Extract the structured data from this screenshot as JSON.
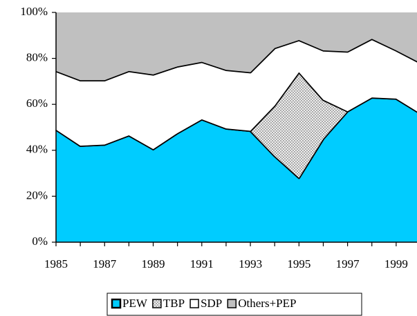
{
  "chart_data": {
    "type": "stacked-area",
    "x": [
      1985,
      1986,
      1987,
      1988,
      1989,
      1990,
      1991,
      1992,
      1993,
      1994,
      1995,
      1996,
      1997,
      1998,
      1999,
      2000
    ],
    "series": [
      {
        "name": "PEW",
        "color": "#00ccff",
        "values": [
          49,
          42,
          42.5,
          46.5,
          40.5,
          47.5,
          53.5,
          49.5,
          48.5,
          37.5,
          28,
          45,
          57,
          63,
          62.5,
          56
        ]
      },
      {
        "name": "TBP",
        "color": "#999999",
        "values": [
          0,
          0,
          0,
          0,
          0,
          0,
          0,
          0,
          0,
          22,
          46,
          17,
          0,
          0,
          0,
          0
        ]
      },
      {
        "name": "SDP",
        "color": "#ffffff",
        "values": [
          25.5,
          28.5,
          28,
          28,
          32.5,
          29,
          25,
          25.5,
          25.5,
          25,
          14,
          21.5,
          26,
          25.5,
          21,
          22
        ]
      },
      {
        "name": "Others+PEP",
        "color": "#c0c0c0",
        "values": [
          25.5,
          29.5,
          29.5,
          25.5,
          27,
          23.5,
          21.5,
          25,
          26,
          15.5,
          12,
          16.5,
          17,
          11.5,
          16.5,
          22
        ]
      }
    ],
    "xlim": [
      1985,
      2000
    ],
    "xticks": [
      1985,
      1987,
      1989,
      1991,
      1993,
      1995,
      1997,
      1999
    ],
    "ylim": [
      0,
      100
    ],
    "yticks": [
      {
        "value": 0,
        "label": "0%"
      },
      {
        "value": 20,
        "label": "20%"
      },
      {
        "value": 40,
        "label": "40%"
      },
      {
        "value": 60,
        "label": "60%"
      },
      {
        "value": 80,
        "label": "80%"
      },
      {
        "value": 100,
        "label": "100%"
      }
    ],
    "legend": "bottom"
  }
}
